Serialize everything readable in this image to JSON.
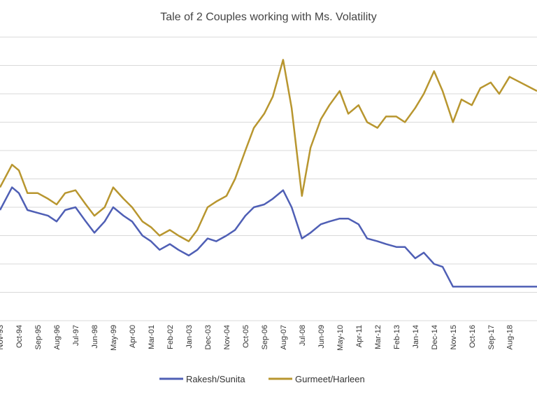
{
  "chart_data": {
    "type": "line",
    "title": "Tale of 2 Couples working with Ms. Volatility",
    "xlabel": "",
    "ylabel": "",
    "x_tick_labels": [
      "Nov-93",
      "Oct-94",
      "Sep-95",
      "Aug-96",
      "Jul-97",
      "Jun-98",
      "May-99",
      "Apr-00",
      "Mar-01",
      "Feb-02",
      "Jan-03",
      "Dec-03",
      "Nov-04",
      "Oct-05",
      "Sep-06",
      "Aug-07",
      "Jul-08",
      "Jun-09",
      "May-10",
      "Apr-11",
      "Mar-12",
      "Feb-13",
      "Jan-14",
      "Dec-14",
      "Nov-15",
      "Oct-16",
      "Sep-17",
      "Aug-18"
    ],
    "x_range": [
      "Nov-93",
      "Dec-19"
    ],
    "y_range": [
      0,
      10
    ],
    "y_ticks_shown": false,
    "grid": "horizontal",
    "legend_position": "bottom",
    "colors": {
      "rakesh": "#4f5fb5",
      "gurmeet": "#b8962f"
    },
    "series": [
      {
        "name": "Rakesh/Sunita",
        "points": [
          [
            "Nov-93",
            3.9
          ],
          [
            "Jun-94",
            4.7
          ],
          [
            "Oct-94",
            4.5
          ],
          [
            "Mar-95",
            3.9
          ],
          [
            "Sep-95",
            3.8
          ],
          [
            "Mar-96",
            3.7
          ],
          [
            "Aug-96",
            3.5
          ],
          [
            "Jan-97",
            3.9
          ],
          [
            "Jul-97",
            4.0
          ],
          [
            "Jan-98",
            3.5
          ],
          [
            "Jun-98",
            3.1
          ],
          [
            "Dec-98",
            3.5
          ],
          [
            "May-99",
            4.0
          ],
          [
            "Nov-99",
            3.7
          ],
          [
            "Apr-00",
            3.5
          ],
          [
            "Oct-00",
            3.0
          ],
          [
            "Mar-01",
            2.8
          ],
          [
            "Aug-01",
            2.5
          ],
          [
            "Feb-02",
            2.7
          ],
          [
            "Jul-02",
            2.5
          ],
          [
            "Jan-03",
            2.3
          ],
          [
            "Jun-03",
            2.5
          ],
          [
            "Dec-03",
            2.9
          ],
          [
            "May-04",
            2.8
          ],
          [
            "Nov-04",
            3.0
          ],
          [
            "Apr-05",
            3.2
          ],
          [
            "Oct-05",
            3.7
          ],
          [
            "Mar-06",
            4.0
          ],
          [
            "Sep-06",
            4.1
          ],
          [
            "Feb-07",
            4.3
          ],
          [
            "Aug-07",
            4.6
          ],
          [
            "Jan-08",
            4.0
          ],
          [
            "Jul-08",
            2.9
          ],
          [
            "Dec-08",
            3.1
          ],
          [
            "Jun-09",
            3.4
          ],
          [
            "Nov-09",
            3.5
          ],
          [
            "May-10",
            3.6
          ],
          [
            "Oct-10",
            3.6
          ],
          [
            "Apr-11",
            3.4
          ],
          [
            "Sep-11",
            2.9
          ],
          [
            "Mar-12",
            2.8
          ],
          [
            "Aug-12",
            2.7
          ],
          [
            "Feb-13",
            2.6
          ],
          [
            "Jul-13",
            2.6
          ],
          [
            "Jan-14",
            2.2
          ],
          [
            "Jun-14",
            2.4
          ],
          [
            "Dec-14",
            2.0
          ],
          [
            "May-15",
            1.9
          ],
          [
            "Nov-15",
            1.2
          ],
          [
            "Apr-16",
            1.2
          ],
          [
            "Oct-16",
            1.2
          ],
          [
            "Mar-17",
            1.2
          ],
          [
            "Sep-17",
            1.2
          ],
          [
            "Feb-18",
            1.2
          ],
          [
            "Aug-18",
            1.2
          ],
          [
            "Dec-19",
            1.2
          ]
        ]
      },
      {
        "name": "Gurmeet/Harleen",
        "points": [
          [
            "Nov-93",
            4.7
          ],
          [
            "Jun-94",
            5.5
          ],
          [
            "Oct-94",
            5.3
          ],
          [
            "Mar-95",
            4.5
          ],
          [
            "Sep-95",
            4.5
          ],
          [
            "Mar-96",
            4.3
          ],
          [
            "Aug-96",
            4.1
          ],
          [
            "Jan-97",
            4.5
          ],
          [
            "Jul-97",
            4.6
          ],
          [
            "Jan-98",
            4.1
          ],
          [
            "Jun-98",
            3.7
          ],
          [
            "Dec-98",
            4.0
          ],
          [
            "May-99",
            4.7
          ],
          [
            "Nov-99",
            4.3
          ],
          [
            "Apr-00",
            4.0
          ],
          [
            "Oct-00",
            3.5
          ],
          [
            "Mar-01",
            3.3
          ],
          [
            "Aug-01",
            3.0
          ],
          [
            "Feb-02",
            3.2
          ],
          [
            "Jul-02",
            3.0
          ],
          [
            "Jan-03",
            2.8
          ],
          [
            "Jun-03",
            3.2
          ],
          [
            "Dec-03",
            4.0
          ],
          [
            "May-04",
            4.2
          ],
          [
            "Nov-04",
            4.4
          ],
          [
            "Apr-05",
            5.0
          ],
          [
            "Oct-05",
            6.0
          ],
          [
            "Mar-06",
            6.8
          ],
          [
            "Sep-06",
            7.3
          ],
          [
            "Feb-07",
            7.9
          ],
          [
            "Aug-07",
            9.2
          ],
          [
            "Jan-08",
            7.5
          ],
          [
            "Jul-08",
            4.4
          ],
          [
            "Dec-08",
            6.1
          ],
          [
            "Jun-09",
            7.1
          ],
          [
            "Nov-09",
            7.6
          ],
          [
            "May-10",
            8.1
          ],
          [
            "Oct-10",
            7.3
          ],
          [
            "Apr-11",
            7.6
          ],
          [
            "Sep-11",
            7.0
          ],
          [
            "Mar-12",
            6.8
          ],
          [
            "Aug-12",
            7.2
          ],
          [
            "Feb-13",
            7.2
          ],
          [
            "Jul-13",
            7.0
          ],
          [
            "Jan-14",
            7.5
          ],
          [
            "Jun-14",
            8.0
          ],
          [
            "Dec-14",
            8.8
          ],
          [
            "May-15",
            8.1
          ],
          [
            "Nov-15",
            7.0
          ],
          [
            "Apr-16",
            7.8
          ],
          [
            "Oct-16",
            7.6
          ],
          [
            "Mar-17",
            8.2
          ],
          [
            "Sep-17",
            8.4
          ],
          [
            "Feb-18",
            8.0
          ],
          [
            "Aug-18",
            8.6
          ],
          [
            "Dec-19",
            8.1
          ]
        ]
      }
    ]
  }
}
